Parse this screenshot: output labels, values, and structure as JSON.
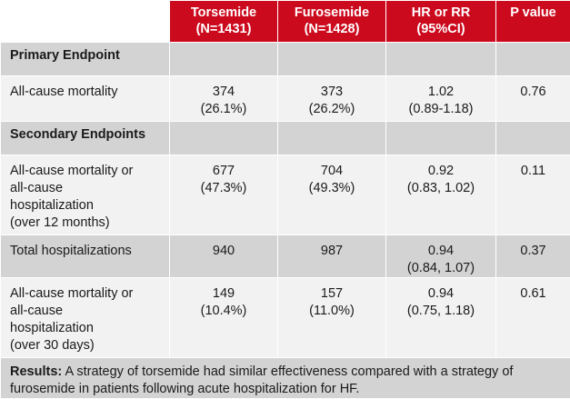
{
  "header": {
    "col1": "Torsemide",
    "col1_n": "(N=1431)",
    "col2": "Furosemide",
    "col2_n": "(N=1428)",
    "col3": "HR or RR",
    "col3_ci": "(95%CI)",
    "col4": "P value"
  },
  "primary": {
    "section": "Primary Endpoint",
    "rows": [
      {
        "label": "All-cause mortality",
        "tor": "374",
        "tor_pct": "(26.1%)",
        "fur": "373",
        "fur_pct": "(26.2%)",
        "hr": "1.02",
        "hr_ci": "(0.89-1.18)",
        "p": "0.76"
      }
    ]
  },
  "secondary": {
    "section": "Secondary Endpoints",
    "rows": [
      {
        "label_lines": [
          "All-cause mortality or",
          "all-cause",
          "hospitalization",
          "(over 12 months)"
        ],
        "tor": "677",
        "tor_pct": "(47.3%)",
        "fur": "704",
        "fur_pct": "(49.3%)",
        "hr": "0.92",
        "hr_ci": "(0.83, 1.02)",
        "p": "0.11"
      },
      {
        "label": "Total hospitalizations",
        "tor": "940",
        "fur": "987",
        "hr": "0.94",
        "hr_ci": "(0.84, 1.07)",
        "p": "0.37"
      },
      {
        "label_lines": [
          "All-cause mortality or",
          "all-cause",
          "hospitalization",
          "(over 30 days)"
        ],
        "tor": "149",
        "tor_pct": "(10.4%)",
        "fur": "157",
        "fur_pct": "(11.0%)",
        "hr": "0.94",
        "hr_ci": "(0.75, 1.18)",
        "p": "0.61"
      }
    ]
  },
  "results": {
    "label": "Results:",
    "text": " A strategy of torsemide had similar effectiveness compared with a strategy of furosemide in patients following acute hospitalization for HF."
  }
}
